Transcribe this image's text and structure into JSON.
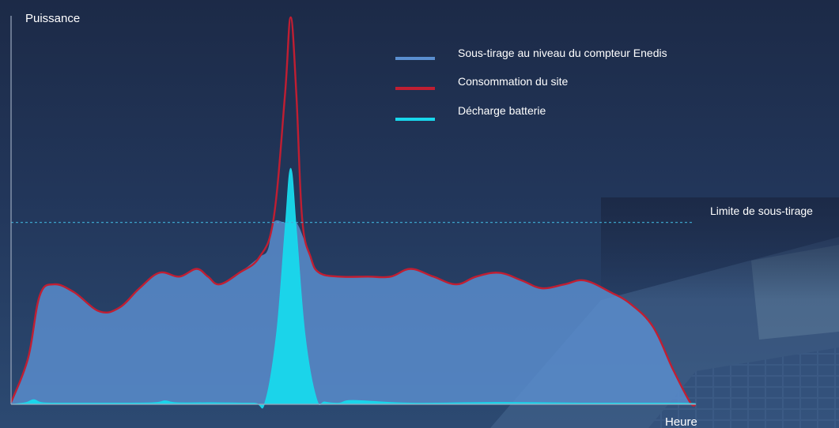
{
  "chart_data": {
    "type": "area",
    "ylabel": "Puissance",
    "xlabel": "Heure",
    "xlim": [
      0,
      24
    ],
    "ylim": [
      0,
      100
    ],
    "threshold": {
      "label": "Limite de sous-tirage",
      "value": 47,
      "color": "#3fb0d8"
    },
    "series": [
      {
        "name": "Sous-tirage au niveau du compteur Enedis",
        "color": "#5b8fd0",
        "style": "filled-area",
        "x": [
          0,
          0.6,
          1.0,
          1.5,
          2.2,
          3.1,
          3.8,
          4.5,
          5.2,
          5.9,
          6.5,
          6.9,
          7.3,
          8.0,
          8.7,
          9.0,
          9.2,
          9.6,
          10.0,
          10.4,
          10.8,
          11.5,
          12.5,
          13.3,
          14.0,
          14.8,
          15.6,
          16.3,
          17.1,
          17.9,
          18.6,
          19.4,
          20.1,
          21.0,
          21.7,
          22.5,
          23.2,
          23.8,
          24.0
        ],
        "values": [
          0.5,
          12,
          28,
          31,
          29,
          24,
          25,
          30,
          34,
          33,
          35,
          33,
          31,
          34,
          38,
          40,
          47,
          47,
          47,
          40,
          34,
          33,
          33,
          33,
          35,
          33,
          31,
          33,
          34,
          32,
          30,
          31,
          32,
          29,
          26,
          20,
          9,
          0.5,
          0
        ]
      },
      {
        "name": "Consommation du site",
        "color": "#c01e32",
        "style": "line",
        "x": [
          0,
          0.6,
          1.0,
          1.5,
          2.2,
          3.1,
          3.8,
          4.5,
          5.2,
          5.9,
          6.5,
          6.9,
          7.3,
          8.0,
          8.7,
          9.2,
          9.6,
          9.8,
          10.0,
          10.2,
          10.5,
          10.8,
          11.5,
          12.5,
          13.3,
          14.0,
          14.8,
          15.6,
          16.3,
          17.1,
          17.9,
          18.6,
          19.4,
          20.1,
          21.0,
          21.7,
          22.5,
          23.2,
          23.8,
          24.0
        ],
        "values": [
          0.5,
          12,
          28,
          31,
          29,
          24,
          25,
          30,
          34,
          33,
          35,
          33,
          31,
          34,
          38,
          48,
          80,
          100,
          80,
          48,
          38,
          34,
          33,
          33,
          33,
          35,
          33,
          31,
          33,
          34,
          32,
          30,
          31,
          32,
          29,
          26,
          20,
          9,
          0.5,
          0
        ]
      },
      {
        "name": "Décharge batterie",
        "color": "#18d8ec",
        "style": "filled-area",
        "x": [
          0,
          0.5,
          0.8,
          1.1,
          2.0,
          3.5,
          5.0,
          5.4,
          5.8,
          7.0,
          8.5,
          8.9,
          9.3,
          9.6,
          9.8,
          10.0,
          10.3,
          10.7,
          11.0,
          11.5,
          12.0,
          14.0,
          17.0,
          20.0,
          23.5,
          24.0
        ],
        "values": [
          0,
          0.4,
          1.2,
          0.4,
          0.3,
          0.3,
          0.4,
          0.9,
          0.4,
          0.4,
          0.3,
          0.5,
          18,
          45,
          61,
          45,
          18,
          1.5,
          0.6,
          0.3,
          1.0,
          0.3,
          0.5,
          0.3,
          0.3,
          0
        ]
      }
    ]
  }
}
